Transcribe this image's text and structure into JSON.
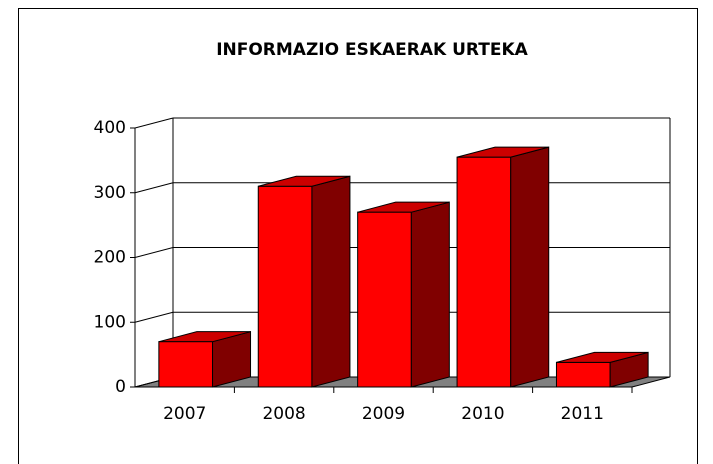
{
  "chart_data": {
    "type": "bar3d",
    "title": "INFORMAZIO ESKAERAK URTEKA",
    "categories": [
      "2007",
      "2008",
      "2009",
      "2010",
      "2011"
    ],
    "values": [
      70,
      310,
      270,
      355,
      38
    ],
    "color": "#ff0000",
    "ylim": [
      0,
      400
    ],
    "yticks": [
      0,
      100,
      200,
      300,
      400
    ],
    "grid": true
  }
}
